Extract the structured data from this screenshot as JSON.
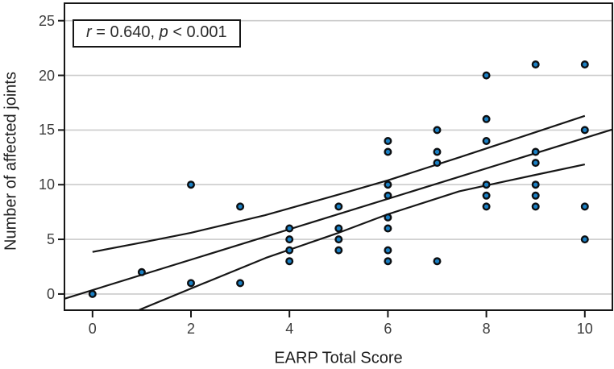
{
  "chart_data": {
    "type": "scatter",
    "title": "",
    "xlabel": "EARP Total Score",
    "ylabel": "Number of affected joints",
    "annotation": {
      "full": "r = 0.640, p < 0.001",
      "r_var": "r",
      "r_rest": " = 0.640, ",
      "p_var": "p",
      "p_rest": " < 0.001"
    },
    "xlim": [
      -0.57,
      10.56
    ],
    "ylim": [
      -1.48,
      26.6
    ],
    "x_ticks": [
      0,
      2,
      4,
      6,
      8,
      10
    ],
    "y_ticks": [
      0,
      5,
      10,
      15,
      20,
      25
    ],
    "grid": "horizontal-only",
    "legend": "none",
    "points": [
      [
        0,
        0
      ],
      [
        1,
        2
      ],
      [
        2,
        1
      ],
      [
        2,
        10
      ],
      [
        3,
        1
      ],
      [
        3,
        8
      ],
      [
        4,
        3
      ],
      [
        4,
        4
      ],
      [
        4,
        5
      ],
      [
        4,
        6
      ],
      [
        5,
        4
      ],
      [
        5,
        5
      ],
      [
        5,
        6
      ],
      [
        5,
        8
      ],
      [
        6,
        3
      ],
      [
        6,
        4
      ],
      [
        6,
        6
      ],
      [
        6,
        7
      ],
      [
        6,
        9
      ],
      [
        6,
        10
      ],
      [
        6,
        13
      ],
      [
        6,
        14
      ],
      [
        7,
        3
      ],
      [
        7,
        12
      ],
      [
        7,
        13
      ],
      [
        7,
        15
      ],
      [
        8,
        8
      ],
      [
        8,
        9
      ],
      [
        8,
        10
      ],
      [
        8,
        14
      ],
      [
        8,
        16
      ],
      [
        8,
        20
      ],
      [
        9,
        8
      ],
      [
        9,
        9
      ],
      [
        9,
        10
      ],
      [
        9,
        12
      ],
      [
        9,
        13
      ],
      [
        9,
        21
      ],
      [
        10,
        5
      ],
      [
        10,
        8
      ],
      [
        10,
        15
      ],
      [
        10,
        21
      ]
    ],
    "regression_line": [
      [
        -0.57,
        -0.43
      ],
      [
        10.56,
        15.05
      ]
    ],
    "ci_upper_line": [
      [
        0,
        3.85
      ],
      [
        1,
        4.7
      ],
      [
        2,
        5.6
      ],
      [
        3.5,
        7.2
      ],
      [
        5,
        9.1
      ],
      [
        6,
        10.4
      ],
      [
        7.45,
        12.5
      ],
      [
        9,
        14.8
      ],
      [
        10,
        16.3
      ]
    ],
    "ci_lower_line": [
      [
        0.95,
        -1.45
      ],
      [
        2,
        0.5
      ],
      [
        3.52,
        3.3
      ],
      [
        5,
        5.6
      ],
      [
        6,
        7.3
      ],
      [
        7.45,
        9.4
      ],
      [
        9,
        10.9
      ],
      [
        10,
        11.85
      ]
    ],
    "colors": {
      "point_fill": "#1a80c4",
      "point_stroke": "#0c0f12",
      "line": "#161616",
      "grid": "#cbcbcb",
      "frame": "#161616",
      "tick_label": "#3d3d3d",
      "axis_label": "#1e1e1e",
      "background": "#ffffff"
    }
  }
}
